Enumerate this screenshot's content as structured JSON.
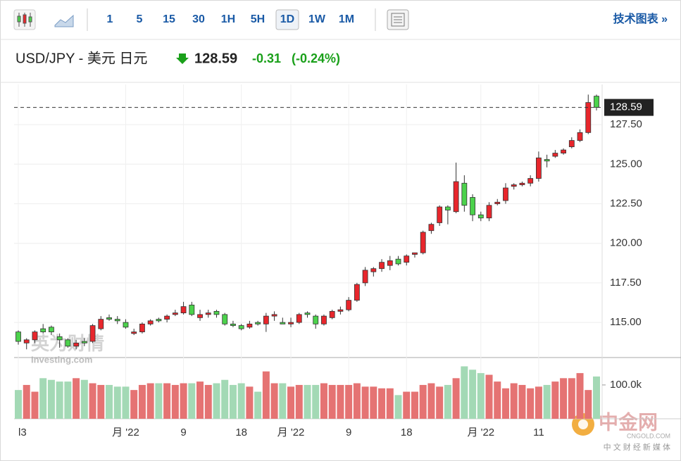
{
  "toolbar": {
    "intervals": [
      "1",
      "5",
      "15",
      "30",
      "1H",
      "5H",
      "1D",
      "1W",
      "1M"
    ],
    "active": "1D",
    "link": "技术图表 »"
  },
  "header": {
    "symbol": "USD/JPY - 美元 日元",
    "price": "128.59",
    "change": "-0.31",
    "change_pct": "(-0.24%)"
  },
  "watermarks": {
    "brand": "英为财情",
    "site": "Investing.com",
    "corner": "中金网",
    "corner_site": "CNGOLD.COM",
    "corner_tagline": "中 文 财 经 新 媒 体"
  },
  "chart_data": {
    "type": "candlestick",
    "up_color": "#e8262c",
    "down_color": "#4cd24c",
    "grid": true,
    "ohlc": [
      [
        114.4,
        114.5,
        113.6,
        113.8
      ],
      [
        113.7,
        114.0,
        113.3,
        113.9
      ],
      [
        113.9,
        114.5,
        113.7,
        114.4
      ],
      [
        114.6,
        114.9,
        114.3,
        114.4
      ],
      [
        114.7,
        114.8,
        114.2,
        114.4
      ],
      [
        114.1,
        114.3,
        113.4,
        113.9
      ],
      [
        113.9,
        114.0,
        113.4,
        113.5
      ],
      [
        113.5,
        113.9,
        113.3,
        113.7
      ],
      [
        113.8,
        114.0,
        113.5,
        113.7
      ],
      [
        113.8,
        114.9,
        113.7,
        114.8
      ],
      [
        114.6,
        115.4,
        114.5,
        115.2
      ],
      [
        115.3,
        115.5,
        115.1,
        115.2
      ],
      [
        115.2,
        115.4,
        114.9,
        115.1
      ],
      [
        115.0,
        115.2,
        114.6,
        114.7
      ],
      [
        114.3,
        114.6,
        114.2,
        114.4
      ],
      [
        114.4,
        115.0,
        114.3,
        114.9
      ],
      [
        114.9,
        115.2,
        114.8,
        115.1
      ],
      [
        115.2,
        115.3,
        115.0,
        115.1
      ],
      [
        115.2,
        115.5,
        115.0,
        115.4
      ],
      [
        115.5,
        115.8,
        115.4,
        115.6
      ],
      [
        115.6,
        116.3,
        115.5,
        116.0
      ],
      [
        116.1,
        116.3,
        115.4,
        115.5
      ],
      [
        115.3,
        115.8,
        115.1,
        115.5
      ],
      [
        115.5,
        115.8,
        115.3,
        115.6
      ],
      [
        115.7,
        115.8,
        115.3,
        115.5
      ],
      [
        115.5,
        115.6,
        114.8,
        114.9
      ],
      [
        114.9,
        115.1,
        114.7,
        114.8
      ],
      [
        114.8,
        114.9,
        114.5,
        114.6
      ],
      [
        114.7,
        115.1,
        114.6,
        114.9
      ],
      [
        115.0,
        115.1,
        114.8,
        114.9
      ],
      [
        114.9,
        115.6,
        114.4,
        115.4
      ],
      [
        115.4,
        115.7,
        115.1,
        115.5
      ],
      [
        115.0,
        115.3,
        114.9,
        114.9
      ],
      [
        114.9,
        115.3,
        114.7,
        115.0
      ],
      [
        115.0,
        115.6,
        114.9,
        115.5
      ],
      [
        115.6,
        115.7,
        115.3,
        115.5
      ],
      [
        115.4,
        115.5,
        114.6,
        114.9
      ],
      [
        114.9,
        115.5,
        114.8,
        115.4
      ],
      [
        115.3,
        115.8,
        115.2,
        115.7
      ],
      [
        115.7,
        116.0,
        115.5,
        115.8
      ],
      [
        115.8,
        116.6,
        115.7,
        116.4
      ],
      [
        116.4,
        117.5,
        116.3,
        117.4
      ],
      [
        117.5,
        118.5,
        117.3,
        118.3
      ],
      [
        118.2,
        118.5,
        117.9,
        118.4
      ],
      [
        118.4,
        119.0,
        118.2,
        118.8
      ],
      [
        118.6,
        119.2,
        118.3,
        118.9
      ],
      [
        119.0,
        119.2,
        118.6,
        118.7
      ],
      [
        118.8,
        119.3,
        118.6,
        119.2
      ],
      [
        119.3,
        119.4,
        119.1,
        119.4
      ],
      [
        119.4,
        120.8,
        119.3,
        120.7
      ],
      [
        120.8,
        121.3,
        120.6,
        121.2
      ],
      [
        121.3,
        122.4,
        121.1,
        122.3
      ],
      [
        122.3,
        122.4,
        121.2,
        122.1
      ],
      [
        122.0,
        125.1,
        121.9,
        123.9
      ],
      [
        123.8,
        124.3,
        122.0,
        122.4
      ],
      [
        122.9,
        123.1,
        121.4,
        121.8
      ],
      [
        121.8,
        122.0,
        121.4,
        121.6
      ],
      [
        121.6,
        122.6,
        121.4,
        122.4
      ],
      [
        122.5,
        122.8,
        122.4,
        122.6
      ],
      [
        122.7,
        123.8,
        122.5,
        123.5
      ],
      [
        123.6,
        123.8,
        123.4,
        123.7
      ],
      [
        123.7,
        123.9,
        123.6,
        123.8
      ],
      [
        123.8,
        124.3,
        123.6,
        124.1
      ],
      [
        124.1,
        125.8,
        123.9,
        125.4
      ],
      [
        125.3,
        125.6,
        124.8,
        125.2
      ],
      [
        125.5,
        125.9,
        125.4,
        125.7
      ],
      [
        125.7,
        126.0,
        125.6,
        125.9
      ],
      [
        126.1,
        126.7,
        126.0,
        126.5
      ],
      [
        126.5,
        127.2,
        126.4,
        127.0
      ],
      [
        127.0,
        129.4,
        126.9,
        128.9
      ],
      [
        129.3,
        129.4,
        128.4,
        128.59
      ]
    ],
    "ylim": [
      112.78,
      130.04
    ],
    "yticks": [
      {
        "value": 115,
        "label": "115.00"
      },
      {
        "value": 117.5,
        "label": "117.50"
      },
      {
        "value": 120,
        "label": "120.00"
      },
      {
        "value": 122.5,
        "label": "122.50"
      },
      {
        "value": 125,
        "label": "125.00"
      },
      {
        "value": 127.5,
        "label": "127.50"
      }
    ],
    "last_price": {
      "value": 128.59,
      "label": "128.59"
    },
    "xticks": [
      {
        "value": 0,
        "label": "l3"
      },
      {
        "value": 13,
        "label": "月 '22"
      },
      {
        "value": 20,
        "label": "9"
      },
      {
        "value": 27,
        "label": "18"
      },
      {
        "value": 33,
        "label": "月 '22"
      },
      {
        "value": 40,
        "label": "9"
      },
      {
        "value": 47,
        "label": "18"
      },
      {
        "value": 56,
        "label": "月 '22"
      },
      {
        "value": 63,
        "label": "11"
      }
    ],
    "volume": {
      "up_color": "#e57373",
      "down_color": "#a3d9b5",
      "values": [
        85000,
        100000,
        80000,
        120000,
        115000,
        110000,
        110000,
        120000,
        115000,
        105000,
        100000,
        100000,
        95000,
        95000,
        85000,
        100000,
        105000,
        105000,
        105000,
        100000,
        105000,
        105000,
        110000,
        100000,
        105000,
        115000,
        100000,
        105000,
        95000,
        80000,
        140000,
        105000,
        105000,
        95000,
        100000,
        100000,
        100000,
        105000,
        100000,
        100000,
        100000,
        105000,
        95000,
        95000,
        90000,
        90000,
        70000,
        80000,
        80000,
        100000,
        105000,
        95000,
        100000,
        120000,
        155000,
        145000,
        135000,
        130000,
        110000,
        90000,
        105000,
        100000,
        90000,
        95000,
        100000,
        110000,
        120000,
        120000,
        135000,
        85000,
        125000
      ],
      "ylim": [
        0,
        181000
      ],
      "yticks": [
        {
          "value": 100000,
          "label": "100.0k"
        }
      ]
    }
  }
}
